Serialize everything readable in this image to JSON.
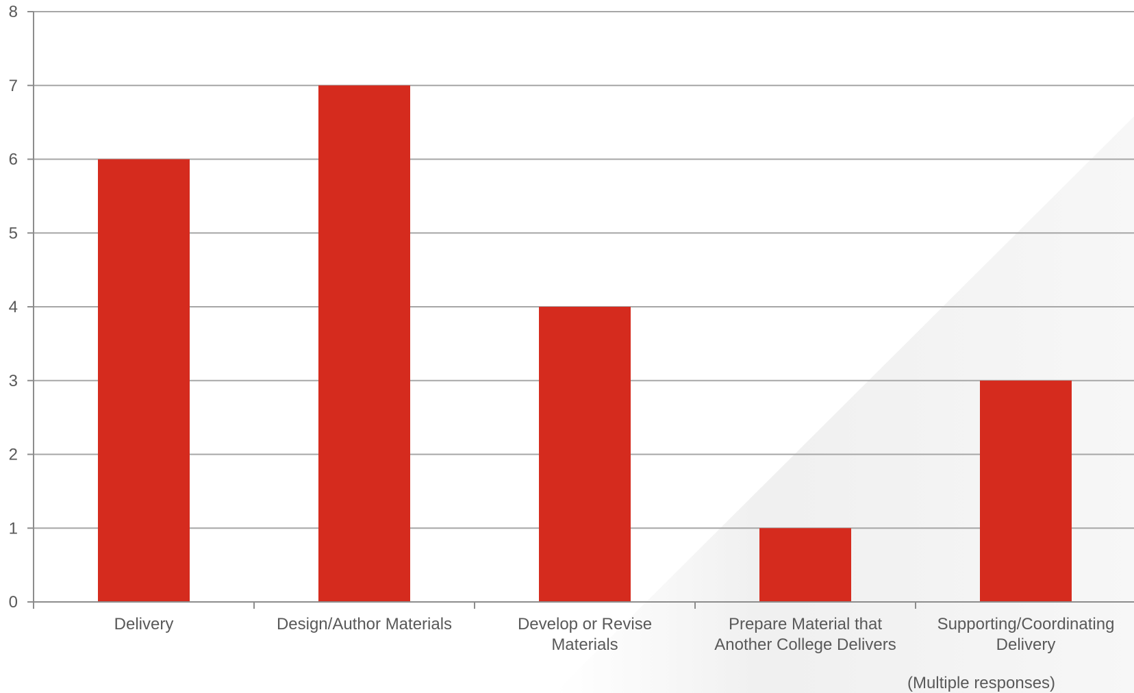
{
  "chart_data": {
    "type": "bar",
    "categories": [
      [
        "Delivery"
      ],
      [
        "Design/Author Materials"
      ],
      [
        "Develop or Revise",
        "Materials"
      ],
      [
        "Prepare Material that",
        "Another College Delivers"
      ],
      [
        "Supporting/Coordinating",
        "Delivery"
      ]
    ],
    "values": [
      6,
      7,
      4,
      1,
      3
    ],
    "ylim": [
      0,
      8
    ],
    "yticks": [
      "0",
      "1",
      "2",
      "3",
      "4",
      "5",
      "6",
      "7",
      "8"
    ],
    "grid": true,
    "bar_color": "#d52b1e",
    "grid_color": "#a6a6a6",
    "axis_color": "#8c8c8c",
    "note": "(Multiple responses)"
  }
}
